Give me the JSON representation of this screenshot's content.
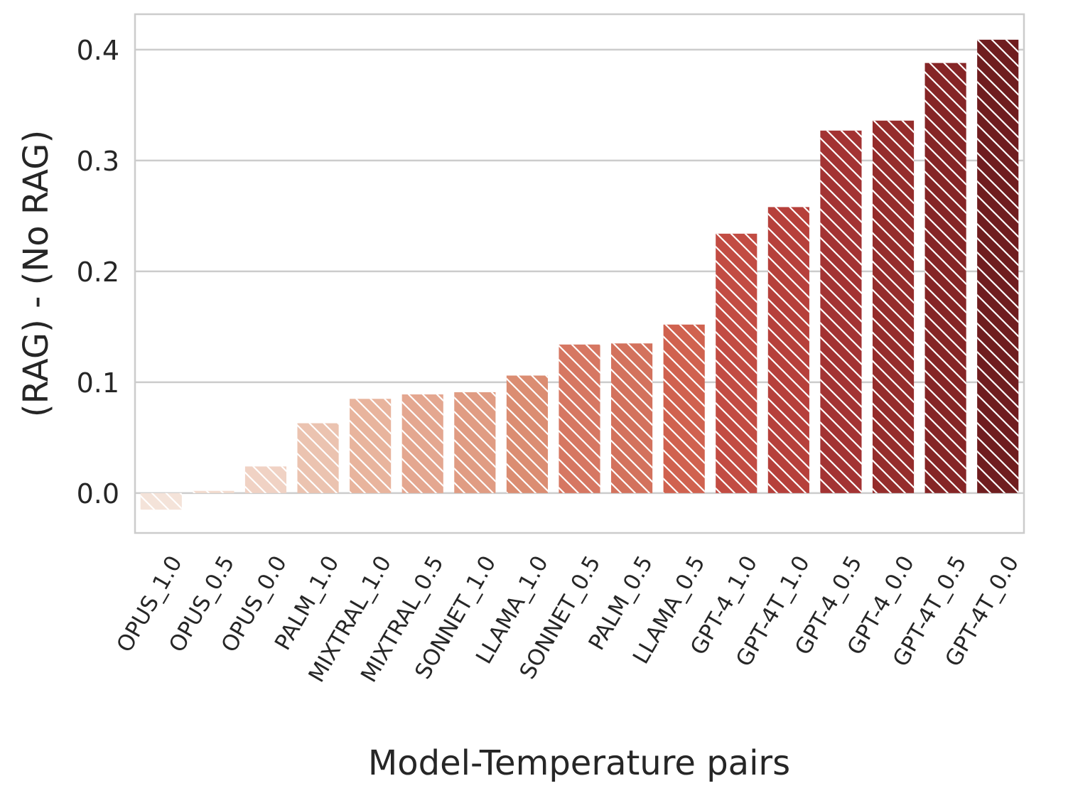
{
  "chart_data": {
    "type": "bar",
    "title": "",
    "xlabel": "Model-Temperature pairs",
    "ylabel": "(RAG) - (No RAG)",
    "categories": [
      "OPUS_1.0",
      "OPUS_0.5",
      "OPUS_0.0",
      "PALM_1.0",
      "MIXTRAL_1.0",
      "MIXTRAL_0.5",
      "SONNET_1.0",
      "LLAMA_1.0",
      "SONNET_0.5",
      "PALM_0.5",
      "LLAMA_0.5",
      "GPT-4_1.0",
      "GPT-4T_1.0",
      "GPT-4_0.5",
      "GPT-4_0.0",
      "GPT-4T_0.5",
      "GPT-4T_0.0"
    ],
    "values": [
      -0.015,
      0.002,
      0.024,
      0.063,
      0.085,
      0.089,
      0.091,
      0.106,
      0.134,
      0.135,
      0.152,
      0.234,
      0.258,
      0.327,
      0.336,
      0.388,
      0.409
    ],
    "ylim": [
      -0.036,
      0.432
    ],
    "yticks": [
      0.0,
      0.1,
      0.2,
      0.3,
      0.4
    ],
    "ytick_labels": [
      "0.0",
      "0.1",
      "0.2",
      "0.3",
      "0.4"
    ],
    "grid": "horizontal",
    "bar_hatch": "diagonal",
    "colors": [
      "#f4e3d9",
      "#f3dccf",
      "#f0d2c4",
      "#ebc3b0",
      "#e8b49d",
      "#e4a790",
      "#e09c83",
      "#db8d72",
      "#d67762",
      "#d3725d",
      "#d0624f",
      "#c24c43",
      "#b6403b",
      "#a33333",
      "#952d2c",
      "#852526",
      "#6f1d1f"
    ]
  }
}
